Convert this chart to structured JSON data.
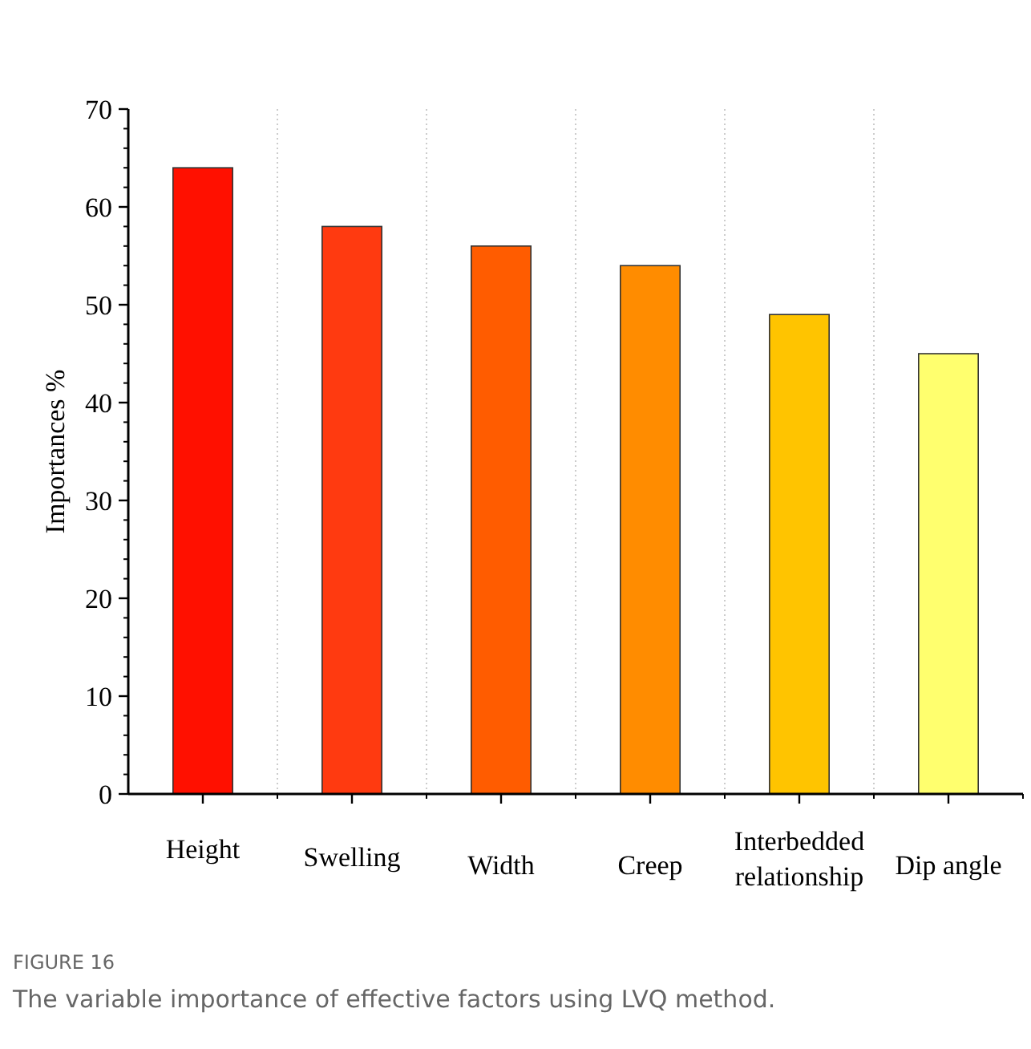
{
  "chart_data": {
    "type": "bar",
    "ylabel": "Importances %",
    "categories": [
      "Height",
      "Swelling",
      "Width",
      "Creep",
      "Interbedded relationship",
      "Dip angle"
    ],
    "values": [
      64,
      58,
      56,
      54,
      49,
      45
    ],
    "colors": [
      "#ff1000",
      "#ff3a10",
      "#ff5c00",
      "#ff8c00",
      "#ffc400",
      "#ffff6e"
    ],
    "ylim": [
      0,
      70
    ],
    "yticks": [
      0,
      10,
      20,
      30,
      40,
      50,
      60,
      70
    ],
    "grid": "x",
    "annotations": [
      "FIGURE 16",
      "The variable importance of effective factors using LVQ method."
    ]
  }
}
